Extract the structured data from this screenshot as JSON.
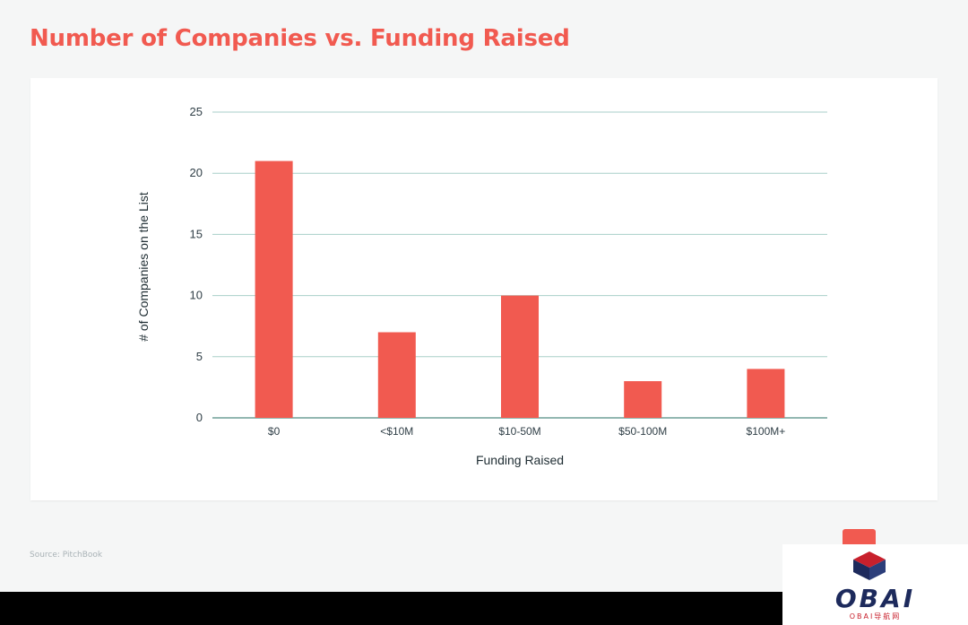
{
  "title": "Number of Companies vs. Funding Raised",
  "source": "Source: PitchBook",
  "colors": {
    "accent": "#f15a50",
    "grid": "#a8cfc8",
    "axis_text": "#2f3e46",
    "background": "#f5f6f6"
  },
  "chart_data": {
    "type": "bar",
    "categories": [
      "$0",
      "<$10M",
      "$10-50M",
      "$50-100M",
      "$100M+"
    ],
    "values": [
      21,
      7,
      10,
      3,
      4
    ],
    "xlabel": "Funding Raised",
    "ylabel": "# of Companies on the List",
    "ylim": [
      0,
      25
    ],
    "yticks": [
      0,
      5,
      10,
      15,
      20,
      25
    ],
    "grid": true,
    "legend": "none"
  },
  "watermark": {
    "text": "OBAI",
    "subtext": "OBAI导航网"
  }
}
